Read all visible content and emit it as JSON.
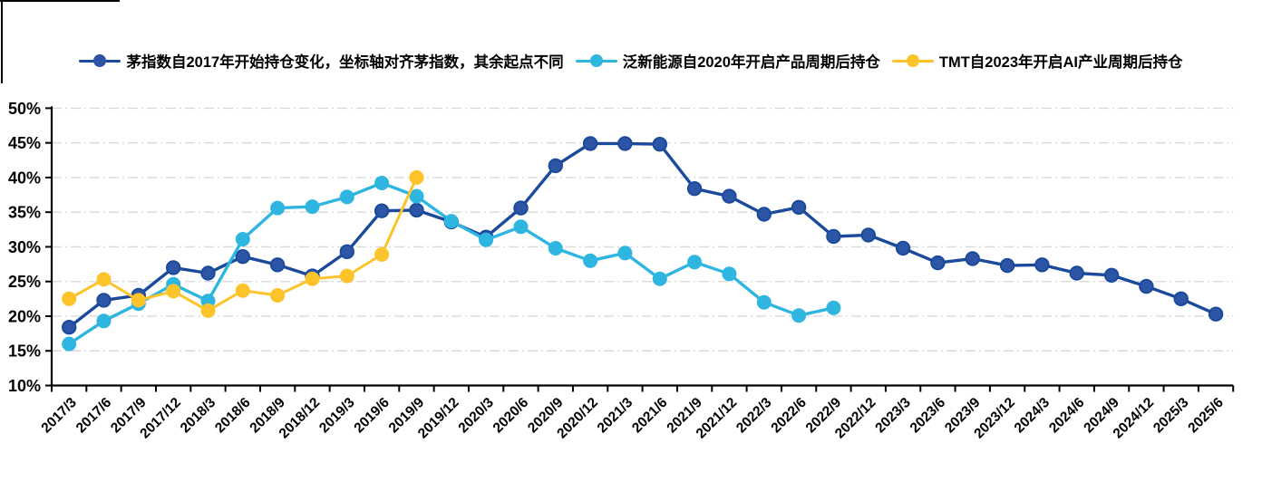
{
  "chart_data": {
    "type": "line",
    "title": "",
    "xlabel": "",
    "ylabel": "",
    "ylim": [
      10,
      50
    ],
    "y_tick_step": 5,
    "y_tick_labels": [
      "10%",
      "15%",
      "20%",
      "25%",
      "30%",
      "35%",
      "40%",
      "45%",
      "50%"
    ],
    "grid": "dashed-horizontal",
    "grid_color": "#d9d9d9",
    "axis_color": "#000000",
    "legend_position": "top",
    "categories": [
      "2017/3",
      "2017/6",
      "2017/9",
      "2017/12",
      "2018/3",
      "2018/6",
      "2018/9",
      "2018/12",
      "2019/3",
      "2019/6",
      "2019/9",
      "2019/12",
      "2020/3",
      "2020/6",
      "2020/9",
      "2020/12",
      "2021/3",
      "2021/6",
      "2021/9",
      "2021/12",
      "2022/3",
      "2022/6",
      "2022/9",
      "2022/12",
      "2023/3",
      "2023/6",
      "2023/9",
      "2023/12",
      "2024/3",
      "2024/6",
      "2024/9",
      "2024/12",
      "2025/3",
      "2025/6"
    ],
    "series": [
      {
        "name": "茅指数自2017年开始持仓变化，坐标轴对齐茅指数，其余起点不同",
        "color": "#1b4a9c",
        "marker_color": "#2d55a5",
        "marker_radius": 7.2,
        "line_width": 3.4,
        "values": [
          18.4,
          22.3,
          23.0,
          27.0,
          26.2,
          28.6,
          27.4,
          25.8,
          29.3,
          35.2,
          35.3,
          33.6,
          31.4,
          35.6,
          41.7,
          44.9,
          44.9,
          44.8,
          38.4,
          37.3,
          34.7,
          35.7,
          31.5,
          31.7,
          29.8,
          27.7,
          28.3,
          27.3,
          27.4,
          26.2,
          25.9,
          24.3,
          22.5,
          20.3
        ]
      },
      {
        "name": "泛新能源自2020年开启产品周期后持仓",
        "color": "#2eb6e0",
        "marker_color": "#2eb6e0",
        "marker_radius": 8,
        "line_width": 3.4,
        "values": [
          16.0,
          19.3,
          21.8,
          24.6,
          22.2,
          31.1,
          35.6,
          35.8,
          37.2,
          39.2,
          37.3,
          33.7,
          31.0,
          32.9,
          29.8,
          28.0,
          29.1,
          25.4,
          27.8,
          26.1,
          22.0,
          20.1,
          21.2,
          null,
          null,
          null,
          null,
          null,
          null,
          null,
          null,
          null,
          null,
          null
        ]
      },
      {
        "name": "TMT自2023年开启AI产业周期后持仓",
        "color": "#fdc32a",
        "marker_color": "#fdc32a",
        "marker_radius": 8,
        "line_width": 3,
        "values": [
          22.5,
          25.3,
          22.3,
          23.6,
          20.8,
          23.7,
          23.0,
          25.4,
          25.8,
          28.9,
          40.0,
          null,
          null,
          null,
          null,
          null,
          null,
          null,
          null,
          null,
          null,
          null,
          null,
          null,
          null,
          null,
          null,
          null,
          null,
          null,
          null,
          null,
          null,
          null
        ]
      }
    ]
  }
}
